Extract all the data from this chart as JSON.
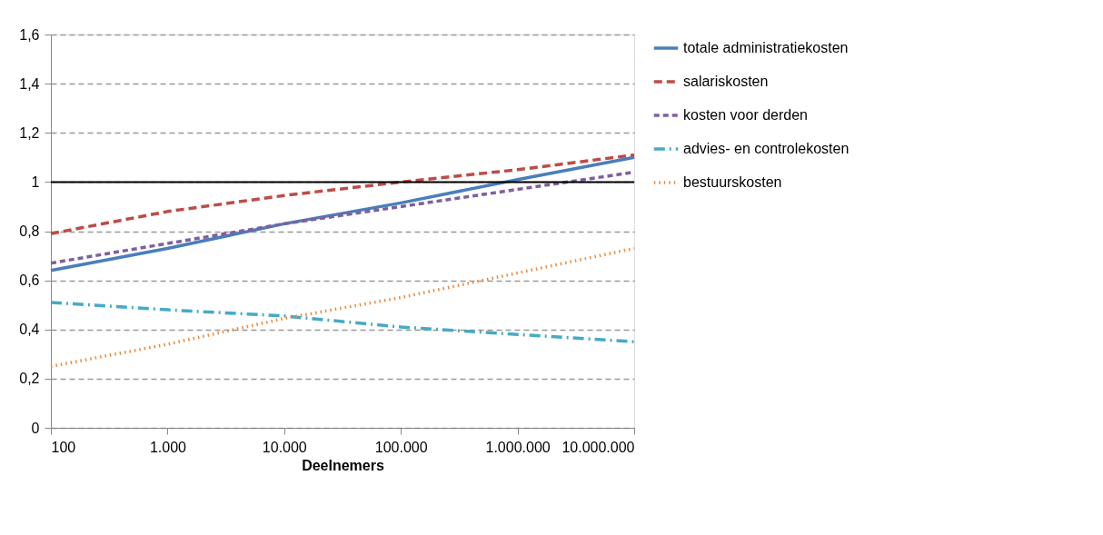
{
  "chart_data": {
    "type": "line",
    "xlabel": "Deelnemers",
    "log": "x",
    "grid": "y",
    "legend": "right",
    "marker": "none",
    "x": [
      100,
      1000,
      10000,
      100000,
      1000000,
      10000000
    ],
    "xlim": [
      100,
      10000000
    ],
    "xticks": [
      {
        "value": 100,
        "label": "100"
      },
      {
        "value": 1000,
        "label": "1.000"
      },
      {
        "value": 10000,
        "label": "10.000"
      },
      {
        "value": 100000,
        "label": "100.000"
      },
      {
        "value": 1000000,
        "label": "1.000.000"
      },
      {
        "value": 10000000,
        "label": "10.000.000"
      }
    ],
    "ylim": [
      0,
      1.6
    ],
    "yticks": [
      0,
      {
        "value": 0.2,
        "label": "0,2"
      },
      {
        "value": 0.4,
        "label": "0,4"
      },
      {
        "value": 0.6,
        "label": "0,6"
      },
      {
        "value": 0.8,
        "label": "0,8"
      },
      1,
      {
        "value": 1.2,
        "label": "1,2"
      },
      {
        "value": 1.4,
        "label": "1,4"
      },
      {
        "value": 1.6,
        "label": "1,6"
      }
    ],
    "ref_lines": [
      {
        "axis": "y",
        "value": 1,
        "color": "#000000",
        "line_style": "solid"
      }
    ],
    "series": [
      {
        "name": "totale administratiekosten",
        "color": "#4a7ebb",
        "line_style": "solid",
        "values": [
          0.64,
          0.73,
          0.83,
          0.915,
          1.01,
          1.1
        ]
      },
      {
        "name": "salariskosten",
        "color": "#be4b48",
        "line_style": "dashed",
        "values": [
          0.79,
          0.88,
          0.945,
          1.0,
          1.05,
          1.11
        ]
      },
      {
        "name": "kosten voor derden",
        "color": "#7d60a0",
        "line_style": "dashed",
        "values": [
          0.67,
          0.75,
          0.83,
          0.9,
          0.97,
          1.04
        ]
      },
      {
        "name": "advies- en controlekosten",
        "color": "#46aac5",
        "line_style": "dashdot",
        "values": [
          0.51,
          0.48,
          0.455,
          0.41,
          0.38,
          0.35
        ]
      },
      {
        "name": "bestuurskosten",
        "color": "#e98a3c",
        "line_style": "dotted",
        "values": [
          0.25,
          0.34,
          0.445,
          0.53,
          0.63,
          0.73
        ]
      }
    ]
  }
}
